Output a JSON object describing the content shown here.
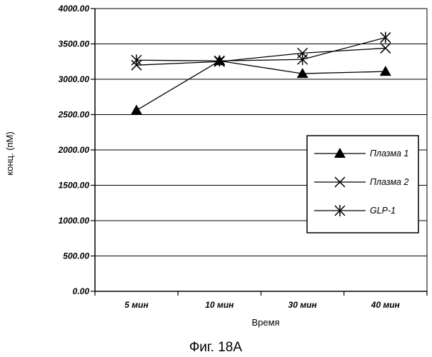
{
  "chart_data": {
    "type": "line",
    "categories": [
      "5 мин",
      "10 мин",
      "30 мин",
      "40 мин"
    ],
    "series": [
      {
        "name": "Плазма 1",
        "marker": "triangle",
        "values": [
          2560,
          3260,
          3080,
          3110
        ]
      },
      {
        "name": "Плазма 2",
        "marker": "x",
        "values": [
          3200,
          3250,
          3370,
          3440
        ]
      },
      {
        "name": "GLP-1",
        "marker": "asterisk",
        "values": [
          3270,
          3260,
          3280,
          3590
        ]
      }
    ],
    "yticks": [
      "0.00",
      "500.00",
      "1000.00",
      "1500.00",
      "2000.00",
      "2500.00",
      "3000.00",
      "3500.00",
      "4000.00"
    ],
    "ylim": [
      0,
      4000
    ],
    "xlabel": "Время",
    "ylabel": "конц. (пМ)",
    "grid": true,
    "legend": "right"
  },
  "caption": "Фиг. 18А",
  "colors": {
    "line": "#000000",
    "grid": "#000000",
    "background": "#ffffff"
  }
}
